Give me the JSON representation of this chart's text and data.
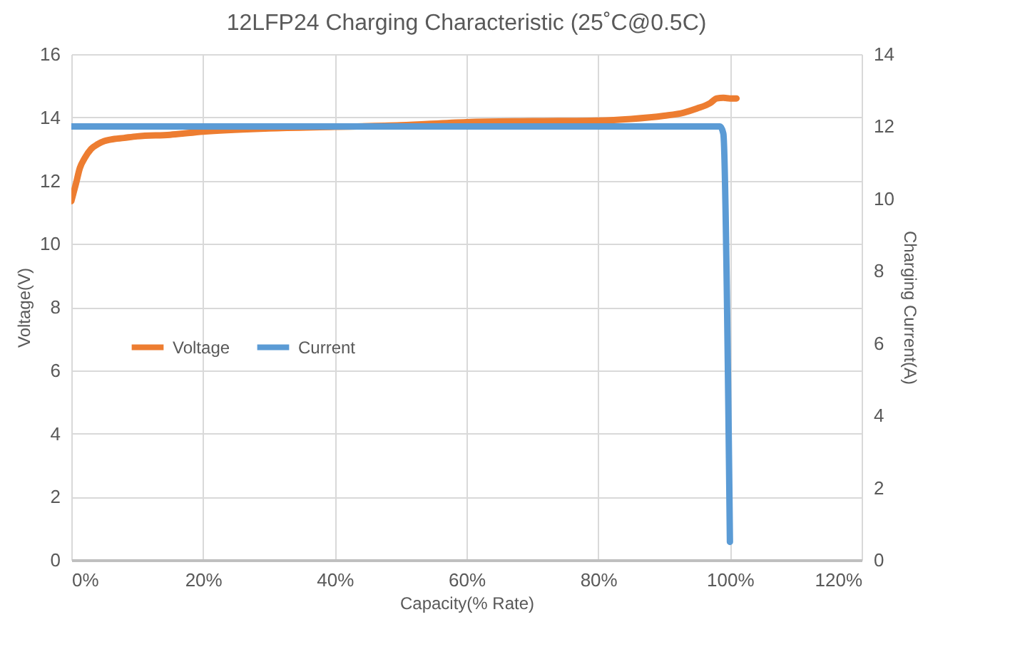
{
  "chart_data": {
    "type": "line",
    "title": "12LFP24 Charging Characteristic (25˚C@0.5C)",
    "xlabel": "Capacity(% Rate)",
    "ylabel": "Voltage(V)",
    "y2label": "Charging Current(A)",
    "xlim": [
      0,
      120
    ],
    "xticks": [
      {
        "value": 0,
        "label": "0%"
      },
      {
        "value": 20,
        "label": "20%"
      },
      {
        "value": 40,
        "label": "40%"
      },
      {
        "value": 60,
        "label": "60%"
      },
      {
        "value": 80,
        "label": "80%"
      },
      {
        "value": 100,
        "label": "100%"
      },
      {
        "value": 120,
        "label": "120%"
      }
    ],
    "ylim": [
      0,
      16
    ],
    "yticks": [
      0,
      2,
      4,
      6,
      8,
      10,
      12,
      14,
      16
    ],
    "y2lim": [
      0,
      14
    ],
    "y2ticks": [
      0,
      2,
      4,
      6,
      8,
      10,
      12,
      14
    ],
    "grid": true,
    "legend": "left",
    "marker": "none",
    "line_style": "solid",
    "series": [
      {
        "name": "Voltage",
        "color": "#ed7d31",
        "x": [
          0,
          0.7,
          1.3,
          2,
          3,
          4,
          5,
          6,
          8,
          10,
          15,
          20,
          30,
          40,
          50,
          60,
          70,
          80,
          85,
          90,
          93,
          95,
          97,
          98,
          99,
          100,
          101
        ],
        "values": [
          11.35,
          11.9,
          12.4,
          12.7,
          13.0,
          13.15,
          13.25,
          13.3,
          13.35,
          13.4,
          13.45,
          13.55,
          13.65,
          13.7,
          13.75,
          13.85,
          13.88,
          13.9,
          13.95,
          14.05,
          14.15,
          14.28,
          14.45,
          14.6,
          14.62,
          14.6,
          14.6
        ]
      },
      {
        "name": "Current",
        "color": "#5b9bd5",
        "axis": "y2",
        "x": [
          0,
          98.5,
          99,
          100
        ],
        "values": [
          12.0,
          12.0,
          11.8,
          0.5
        ]
      }
    ]
  }
}
